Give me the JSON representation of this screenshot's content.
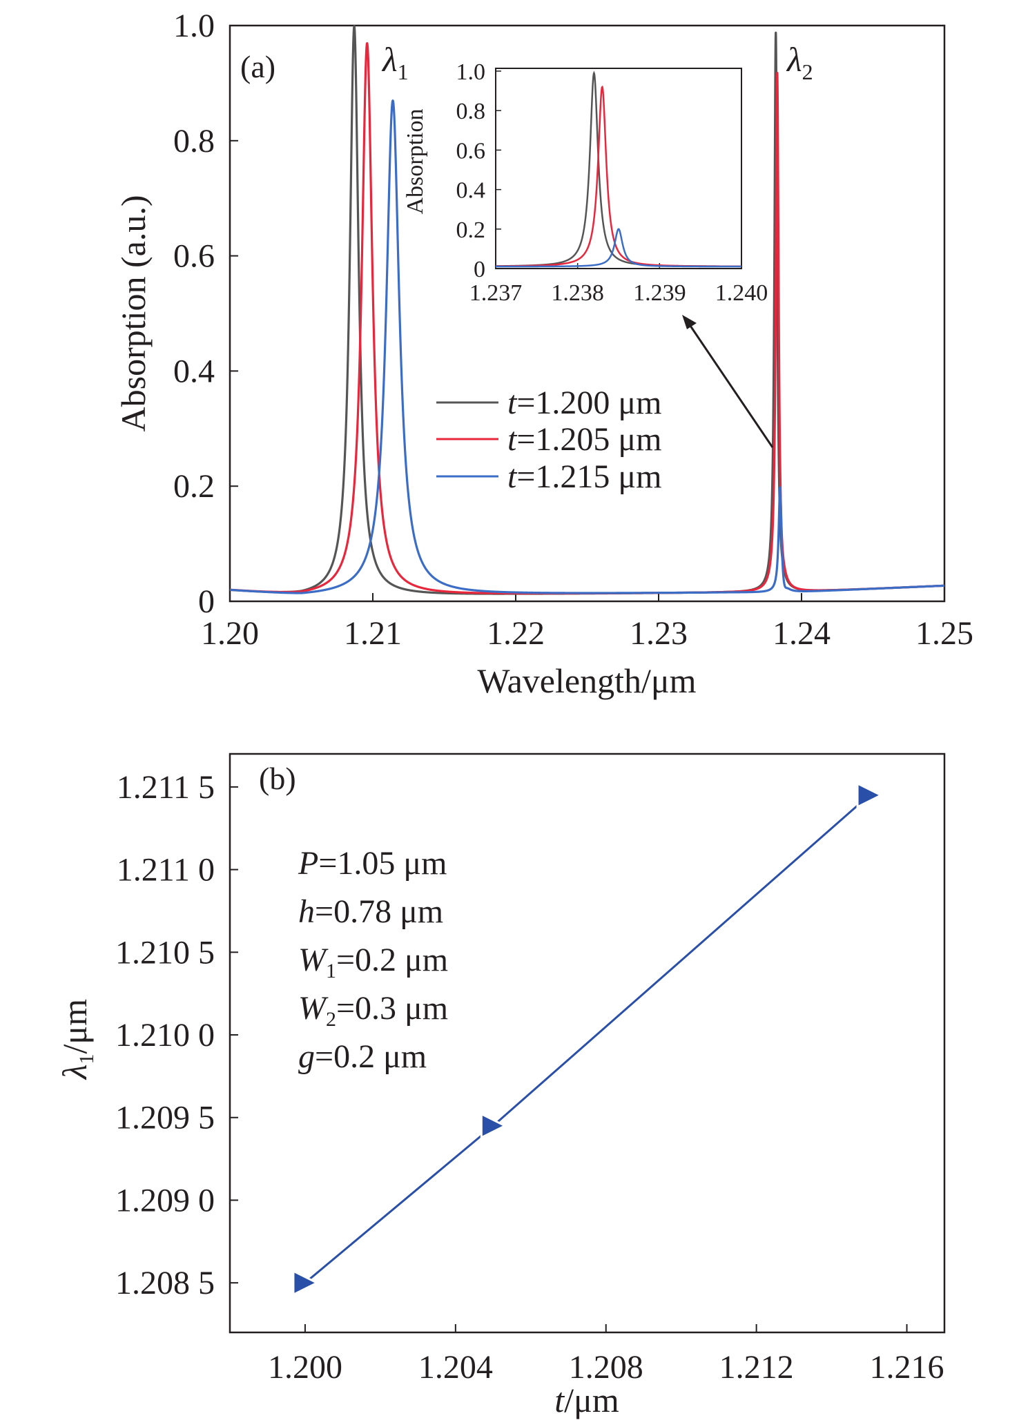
{
  "chart_data": [
    {
      "type": "line",
      "panel_label": "(a)",
      "xlabel": "Wavelength/μm",
      "ylabel": "Absorption (a.u.)",
      "xlim": [
        1.2,
        1.25
      ],
      "ylim": [
        0,
        1.0
      ],
      "x_ticks": [
        "1.20",
        "1.21",
        "1.22",
        "1.23",
        "1.24",
        "1.25"
      ],
      "y_ticks": [
        "0",
        "0.2",
        "0.4",
        "0.6",
        "0.8",
        "1.0"
      ],
      "annotations": [
        {
          "symbol": "λ",
          "subscript": "1"
        },
        {
          "symbol": "λ",
          "subscript": "2"
        }
      ],
      "colors": [
        "#555555",
        "#e8273d",
        "#3b6dc6"
      ],
      "series": [
        {
          "name": "t=1.200 μm",
          "prefix": "t",
          "rest": "=1.200 μm",
          "color": "#555555",
          "peak1": {
            "x": 1.2087,
            "y": 1.0,
            "width": 0.00075
          },
          "peak2": {
            "x": 1.2382,
            "y": 0.99
          }
        },
        {
          "name": "t=1.205 μm",
          "prefix": "t",
          "rest": "=1.205 μm",
          "color": "#e8273d",
          "peak1": {
            "x": 1.2096,
            "y": 0.97,
            "width": 0.0009
          },
          "peak2": {
            "x": 1.2383,
            "y": 0.92
          }
        },
        {
          "name": "t=1.215 μm",
          "prefix": "t",
          "rest": "=1.215 μm",
          "color": "#3b6dc6",
          "peak1": {
            "x": 1.2114,
            "y": 0.87,
            "width": 0.0011
          },
          "peak2": {
            "x": 1.2385,
            "y": 0.2
          }
        }
      ],
      "baseline": [
        [
          1.2,
          0.018
        ],
        [
          1.205,
          0.008
        ],
        [
          1.22,
          0.012
        ],
        [
          1.235,
          0.015
        ],
        [
          1.239,
          0.015
        ],
        [
          1.25,
          0.027
        ]
      ],
      "inset": {
        "ylabel": "Absorption",
        "xlim": [
          1.237,
          1.24
        ],
        "ylim": [
          0,
          1.0
        ],
        "x_ticks": [
          "1.237",
          "1.238",
          "1.239",
          "1.240"
        ],
        "y_ticks": [
          "0",
          "0.2",
          "0.4",
          "0.6",
          "0.8",
          "1.0"
        ]
      }
    },
    {
      "type": "line",
      "panel_label": "(b)",
      "xlabel_symbol": "t",
      "xlabel_rest": "/μm",
      "ylabel_symbol": "λ",
      "ylabel_sub": "1",
      "ylabel_rest": "/μm",
      "xlim": [
        1.198,
        1.217
      ],
      "ylim": [
        1.2082,
        1.2117
      ],
      "x_ticks": [
        "1.200",
        "1.204",
        "1.208",
        "1.212",
        "1.216"
      ],
      "y_ticks": [
        "1.208 5",
        "1.209 0",
        "1.209 5",
        "1.210 0",
        "1.210 5",
        "1.211 0",
        "1.211 5"
      ],
      "x": [
        1.2,
        1.205,
        1.215
      ],
      "y": [
        1.2085,
        1.20945,
        1.21145
      ],
      "marker": "triangle-right",
      "color": "#2a4fa8",
      "parameters": [
        {
          "symbol": "P",
          "sub": "",
          "rest": "=1.05 μm"
        },
        {
          "symbol": "h",
          "sub": "",
          "rest": "=0.78 μm"
        },
        {
          "symbol": "W",
          "sub": "1",
          "rest": "=0.2 μm"
        },
        {
          "symbol": "W",
          "sub": "2",
          "rest": "=0.3 μm"
        },
        {
          "symbol": "g",
          "sub": "",
          "rest": "=0.2 μm"
        }
      ]
    }
  ]
}
